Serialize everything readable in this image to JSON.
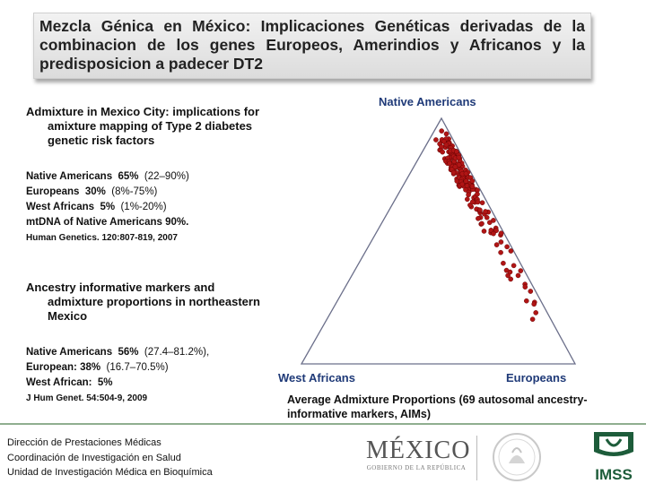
{
  "title": "Mezcla Génica en México: Implicaciones Genéticas derivadas de la combinacion de los genes Europeos, Amerindios y Africanos y la predisposicion a padecer DT2",
  "study1": {
    "heading_line1": "Admixture in Mexico City: implications for",
    "heading_line2": "amixture mapping of Type 2 diabetes",
    "heading_line3": "genetic risk factors",
    "rows": [
      {
        "label": "Native Americans",
        "value": "65%",
        "range": "(22–90%)"
      },
      {
        "label": "Europeans",
        "value": "30%",
        "range": "(8%-75%)"
      },
      {
        "label": "West Africans",
        "value": "5%",
        "range": "(1%-20%)"
      },
      {
        "label": "mtDNA of Native Americans",
        "value": "90%.",
        "range": ""
      }
    ],
    "reference": "Human Genetics. 120:807-819, 2007"
  },
  "study2": {
    "heading_line1": "Ancestry informative markers and",
    "heading_line2": "admixture proportions in northeastern",
    "heading_line3": "Mexico",
    "rows": [
      {
        "label": "Native Americans",
        "value": "56%",
        "range": "(27.4–81.2%),"
      },
      {
        "label": "European:",
        "value": "38%",
        "range": "(16.7–70.5%)"
      },
      {
        "label": "West African:",
        "value": "5%",
        "range": ""
      }
    ],
    "reference": "J Hum Genet. 54:504-9, 2009"
  },
  "chart_data": {
    "type": "scatter",
    "subtype": "ternary",
    "vertices": {
      "top": "Native Americans",
      "left": "West Africans",
      "right": "Europeans"
    },
    "caption": "Average Admixture Proportions (69  autosomal ancestry-informative markers, AIMs)",
    "point_color": "#b01515",
    "points_european_fraction_estimate": [
      0.05,
      0.06,
      0.07,
      0.08,
      0.08,
      0.09,
      0.1,
      0.1,
      0.11,
      0.12,
      0.12,
      0.13,
      0.14,
      0.14,
      0.15,
      0.15,
      0.16,
      0.17,
      0.17,
      0.18,
      0.18,
      0.19,
      0.2,
      0.2,
      0.21,
      0.22,
      0.22,
      0.23,
      0.24,
      0.25,
      0.26,
      0.27,
      0.28,
      0.3,
      0.31,
      0.33,
      0.35,
      0.37,
      0.4,
      0.43,
      0.46,
      0.5,
      0.55,
      0.6,
      0.68,
      0.75
    ]
  },
  "footer": {
    "line1": "Dirección de Prestaciones Médicas",
    "line2": "Coordinación de Investigación en Salud",
    "line3": "Unidad de Investigación Médica en Bioquímica"
  },
  "logos": {
    "mexico_word": "MÉXICO",
    "mexico_sub": "GOBIERNO DE LA REPÚBLICA",
    "imss_word": "IMSS"
  }
}
